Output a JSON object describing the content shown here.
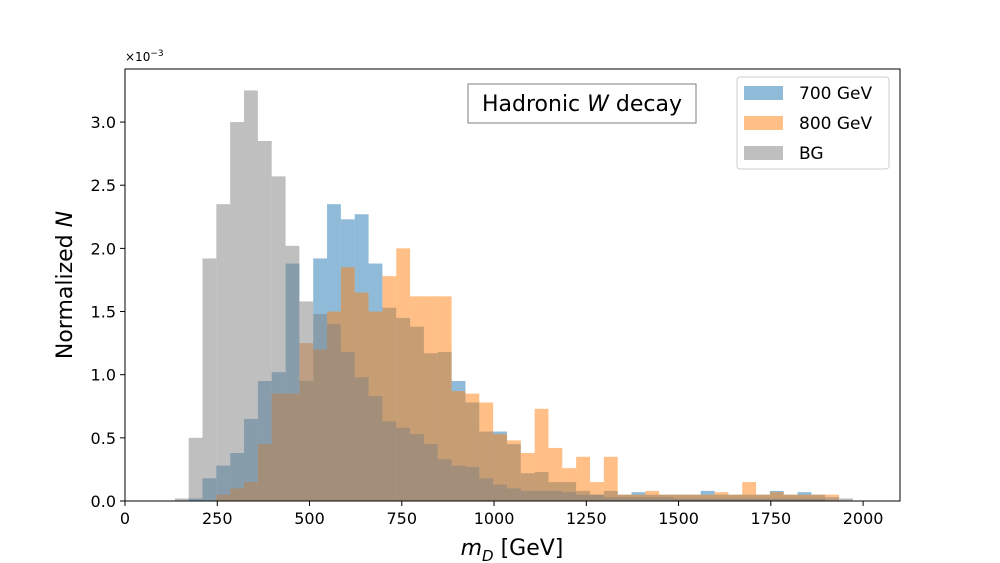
{
  "chart_data": {
    "type": "histogram",
    "bin_width": 37.5,
    "x_ticks": [
      0,
      250,
      500,
      750,
      1000,
      1250,
      1500,
      1750,
      2000
    ],
    "y_ticks": [
      0.0,
      0.5,
      1.0,
      1.5,
      2.0,
      2.5,
      3.0
    ],
    "y_tick_labels": [
      "0.0",
      "0.5",
      "1.0",
      "1.5",
      "2.0",
      "2.5",
      "3.0"
    ],
    "y_offset": {
      "base": "×10",
      "exponent": "−3"
    },
    "xlim": [
      0,
      2100
    ],
    "ylim": [
      0,
      3.42
    ],
    "xlabel": {
      "main": "m",
      "sub": "D",
      "rest": " [GeV]"
    },
    "ylabel": {
      "main": "Normalized ",
      "italic": "N"
    },
    "annotation": {
      "prefix": "Hadronic ",
      "italic": "W",
      "suffix": " decay"
    },
    "legend_position": "upper-right",
    "series": [
      {
        "name": "700 GeV",
        "color": "#1f77b4",
        "alpha": 0.5,
        "x_start": 135,
        "values": [
          0.0,
          0.02,
          0.18,
          0.28,
          0.38,
          0.65,
          0.95,
          1.02,
          1.88,
          0.95,
          1.92,
          2.35,
          2.23,
          2.27,
          1.88,
          1.53,
          1.45,
          1.38,
          1.17,
          1.18,
          0.95,
          0.78,
          0.55,
          0.55,
          0.45,
          0.22,
          0.23,
          0.15,
          0.15,
          0.08,
          0.05,
          0.08,
          0.05,
          0.07,
          0.05,
          0.05,
          0.05,
          0.05,
          0.08,
          0.05,
          0.05,
          0.05,
          0.05,
          0.08,
          0.05,
          0.07,
          0.05,
          0.0,
          0.0
        ]
      },
      {
        "name": "800 GeV",
        "color": "#ff7f0e",
        "alpha": 0.5,
        "x_start": 135,
        "values": [
          0.0,
          0.0,
          0.0,
          0.05,
          0.1,
          0.15,
          0.45,
          0.85,
          0.85,
          1.25,
          1.2,
          1.5,
          1.85,
          1.65,
          1.5,
          1.78,
          2.0,
          1.62,
          1.62,
          1.62,
          0.87,
          0.85,
          0.78,
          0.53,
          0.48,
          0.38,
          0.73,
          0.42,
          0.26,
          0.35,
          0.15,
          0.35,
          0.05,
          0.05,
          0.08,
          0.05,
          0.05,
          0.05,
          0.05,
          0.07,
          0.05,
          0.15,
          0.05,
          0.07,
          0.05,
          0.05,
          0.05,
          0.05,
          0.0
        ]
      },
      {
        "name": "BG",
        "color": "#7f7f7f",
        "alpha": 0.5,
        "x_start": 135,
        "values": [
          0.02,
          0.5,
          1.92,
          2.35,
          3.0,
          3.25,
          2.85,
          2.57,
          2.02,
          1.58,
          1.48,
          1.4,
          1.18,
          0.98,
          0.83,
          0.63,
          0.58,
          0.53,
          0.45,
          0.33,
          0.28,
          0.27,
          0.18,
          0.13,
          0.1,
          0.08,
          0.08,
          0.08,
          0.07,
          0.05,
          0.05,
          0.03,
          0.03,
          0.03,
          0.03,
          0.03,
          0.02,
          0.02,
          0.02,
          0.02,
          0.02,
          0.02,
          0.02,
          0.02,
          0.02,
          0.02,
          0.02,
          0.03,
          0.02
        ]
      }
    ]
  }
}
